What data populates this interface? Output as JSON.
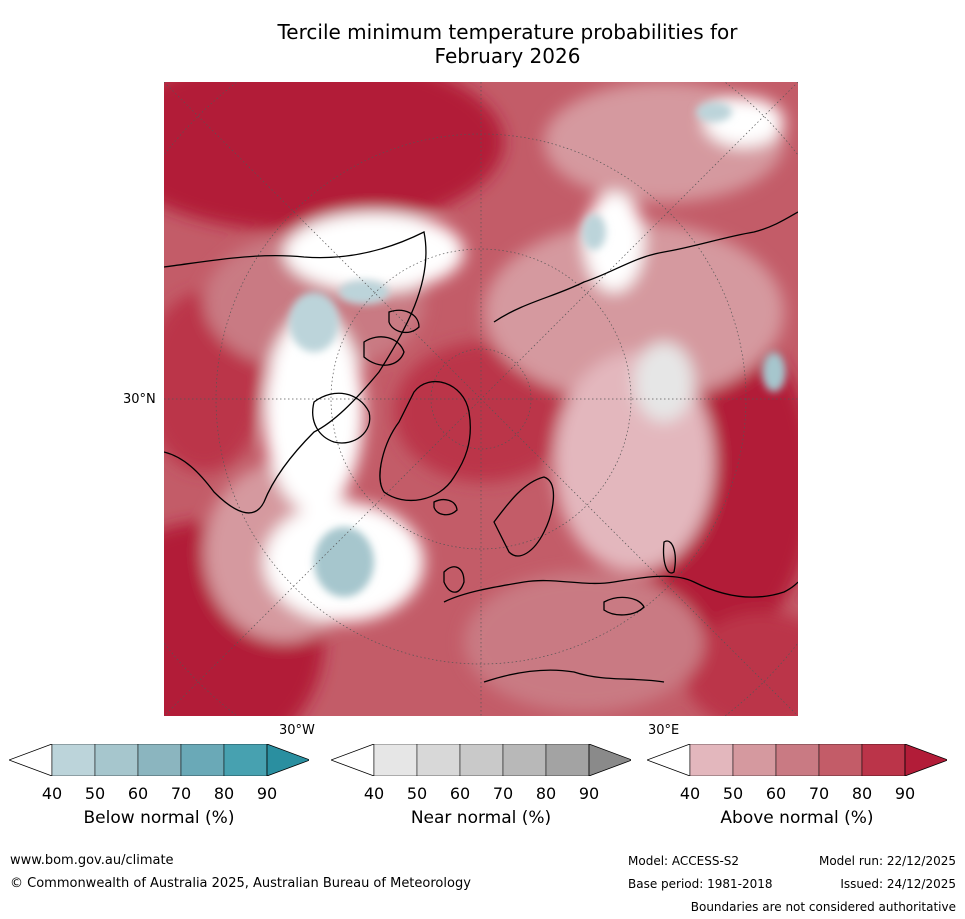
{
  "title_line1": "Tercile minimum temperature probabilities for",
  "title_line2": "February 2026",
  "map": {
    "projection": "polar stereographic, north pole",
    "lat_label": "30°N",
    "lon_label_left": "30°W",
    "lon_label_right": "30°E"
  },
  "colorbars": [
    {
      "label": "Below normal (%)",
      "ticks": [
        "40",
        "50",
        "60",
        "70",
        "80",
        "90"
      ],
      "colors": [
        "#ffffff",
        "#bcd4da",
        "#a6c6cd",
        "#8bb5bf",
        "#6aa9b7",
        "#47a1b0",
        "#2a8fa0"
      ]
    },
    {
      "label": "Near normal (%)",
      "ticks": [
        "40",
        "50",
        "60",
        "70",
        "80",
        "90"
      ],
      "colors": [
        "#ffffff",
        "#e6e6e6",
        "#d8d8d8",
        "#c9c9c9",
        "#b8b8b8",
        "#a3a3a3",
        "#8a8a8a"
      ]
    },
    {
      "label": "Above normal (%)",
      "ticks": [
        "40",
        "50",
        "60",
        "70",
        "80",
        "90"
      ],
      "colors": [
        "#ffffff",
        "#e3b7bd",
        "#d5999f",
        "#c97a83",
        "#c35c68",
        "#bb3449",
        "#b21c38"
      ]
    }
  ],
  "footer": {
    "url": "www.bom.gov.au/climate",
    "copyright": "© Commonwealth of Australia 2025, Australian Bureau of Meteorology",
    "model": "Model: ACCESS-S2",
    "model_run": "Model run: 22/12/2025",
    "base_period": "Base period: 1981-2018",
    "issued": "Issued: 24/12/2025",
    "disclaimer": "Boundaries are not considered authoritative"
  }
}
